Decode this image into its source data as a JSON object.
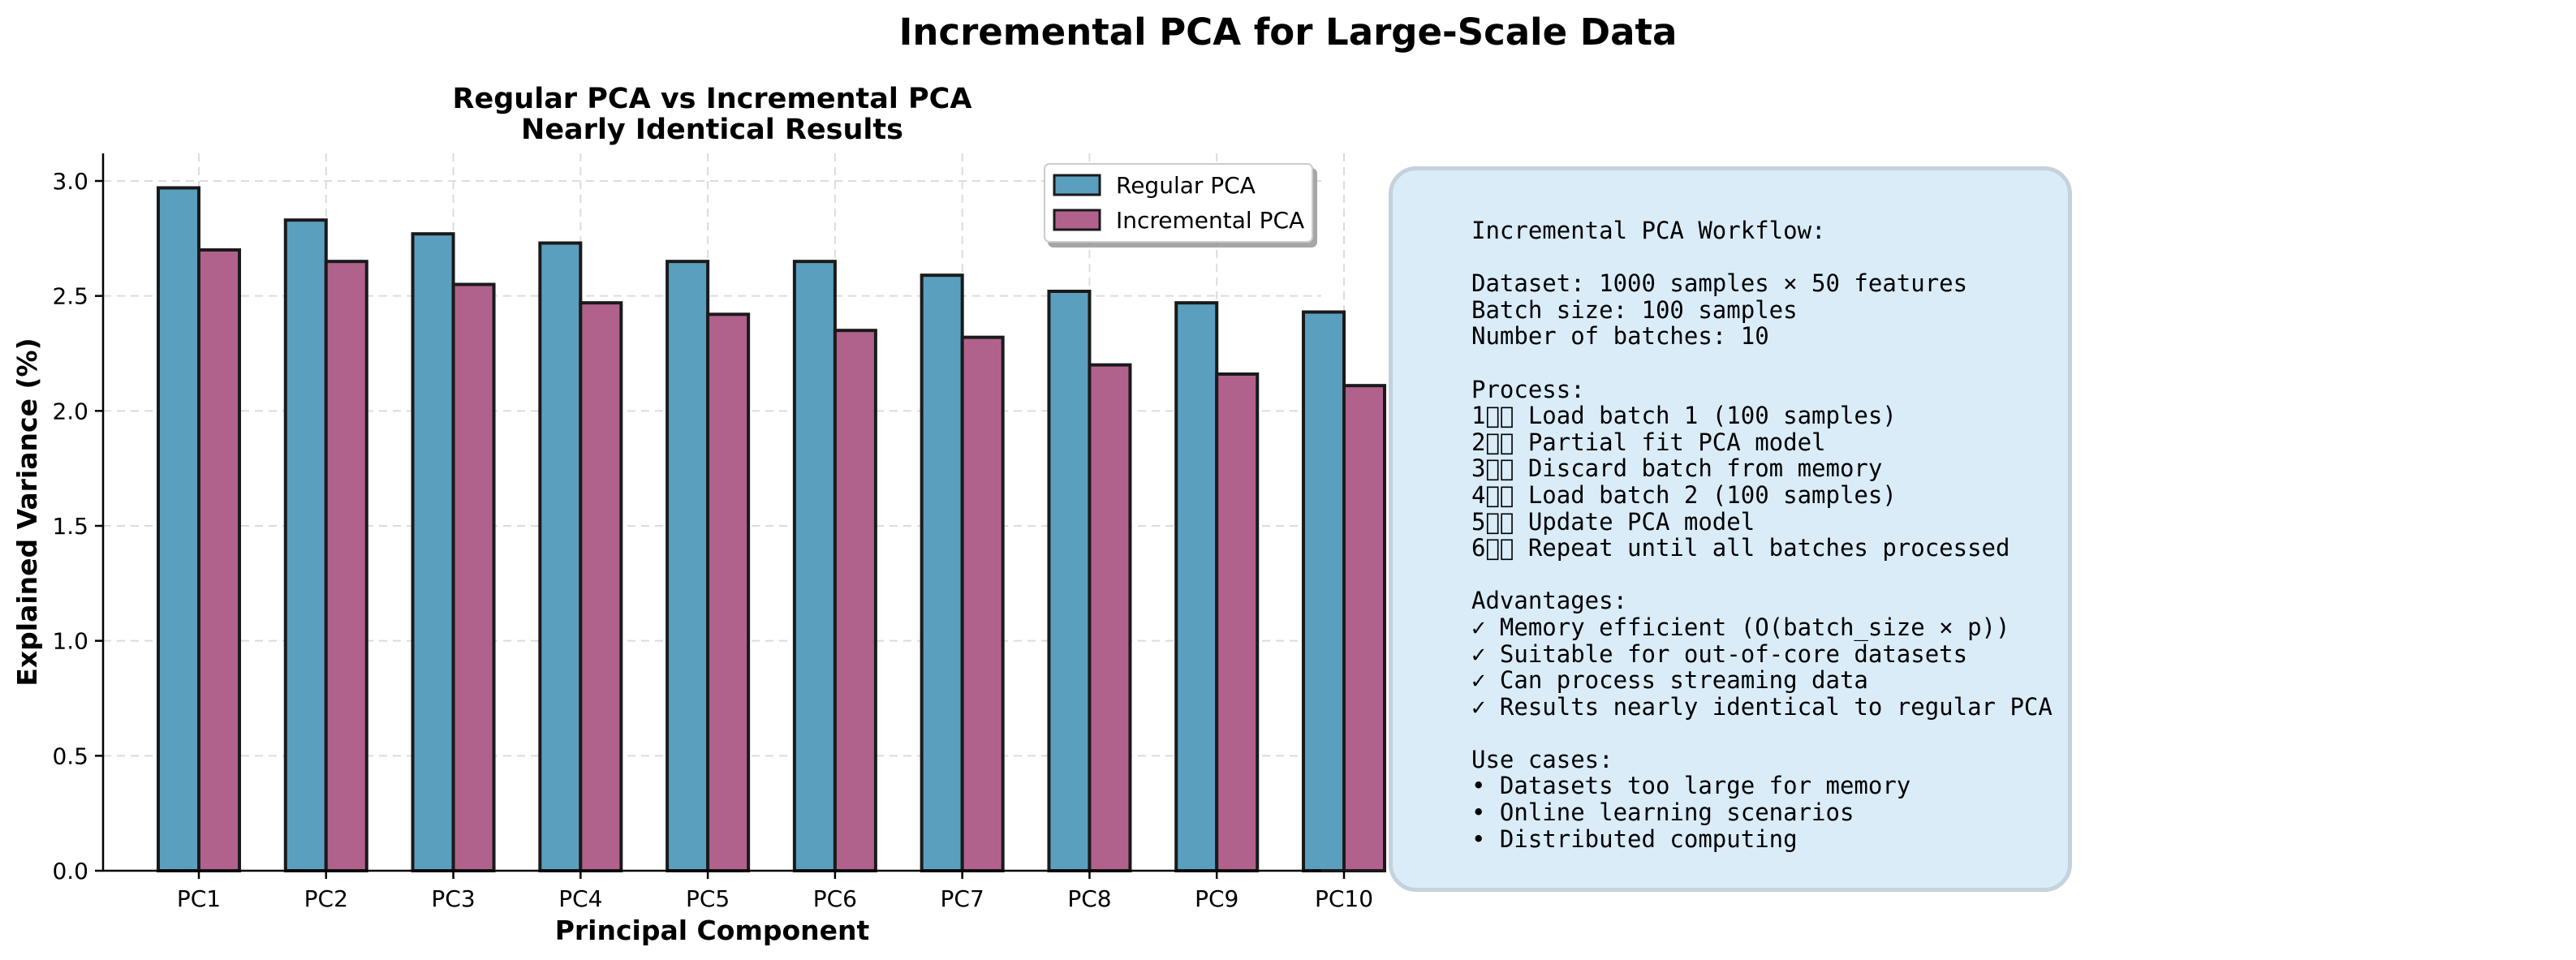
{
  "figure": {
    "title": "Incremental PCA for Large-Scale Data"
  },
  "chart_data": {
    "type": "bar",
    "title": "Regular PCA vs Incremental PCA\nNearly Identical Results",
    "xlabel": "Principal Component",
    "ylabel": "Explained Variance (%)",
    "categories": [
      "PC1",
      "PC2",
      "PC3",
      "PC4",
      "PC5",
      "PC6",
      "PC7",
      "PC8",
      "PC9",
      "PC10"
    ],
    "series": [
      {
        "name": "Regular PCA",
        "color": "#5b9fbf",
        "values": [
          2.97,
          2.83,
          2.77,
          2.73,
          2.65,
          2.65,
          2.59,
          2.52,
          2.47,
          2.43
        ]
      },
      {
        "name": "Incremental PCA",
        "color": "#b1628c",
        "values": [
          2.7,
          2.65,
          2.55,
          2.47,
          2.42,
          2.35,
          2.32,
          2.2,
          2.16,
          2.11
        ]
      }
    ],
    "ylim": [
      0,
      3.12
    ],
    "yticks": [
      0.0,
      0.5,
      1.0,
      1.5,
      2.0,
      2.5,
      3.0
    ],
    "ytick_labels": [
      "0.0",
      "0.5",
      "1.0",
      "1.5",
      "2.0",
      "2.5",
      "3.0"
    ],
    "grid": true,
    "legend_position": "top-right"
  },
  "info_box": {
    "text": "Incremental PCA Workflow:\n\nDataset: 1000 samples × 50 features\nBatch size: 100 samples\nNumber of batches: 10\n\nProcess:\n1⃣⃣ Load batch 1 (100 samples)\n2⃣⃣ Partial fit PCA model\n3⃣⃣ Discard batch from memory\n4⃣⃣ Load batch 2 (100 samples)\n5⃣⃣ Update PCA model\n6⃣⃣ Repeat until all batches processed\n\nAdvantages:\n✓ Memory efficient (O(batch_size × p))\n✓ Suitable for out-of-core datasets\n✓ Can process streaming data\n✓ Results nearly identical to regular PCA\n\nUse cases:\n• Datasets too large for memory\n• Online learning scenarios\n• Distributed computing"
  }
}
